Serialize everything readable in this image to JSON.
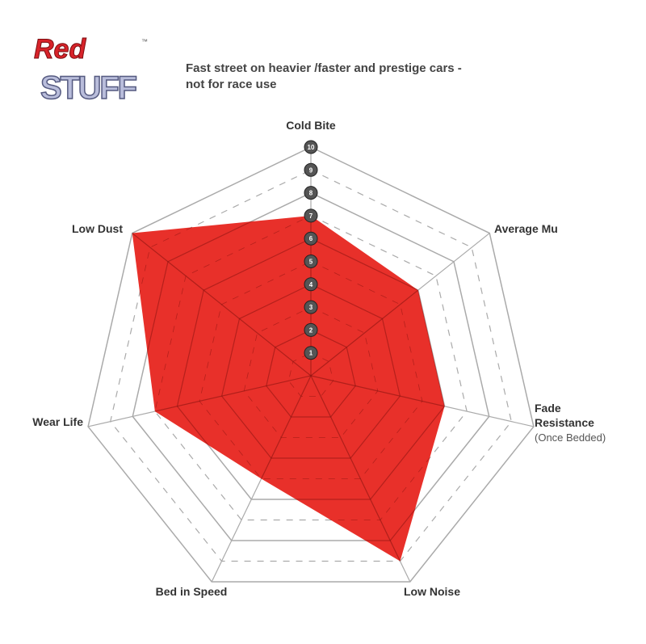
{
  "logo": {
    "line1": "Red",
    "line2": "STUFF",
    "tm": "™"
  },
  "subtitle": {
    "line1": "Fast street on heavier /faster and prestige cars -",
    "line2": "not for race use"
  },
  "chart_data": {
    "type": "radar",
    "title": "",
    "axes": [
      "Cold Bite",
      "Average Mu",
      "Fade Resistance",
      "Low Noise",
      "Bed in Speed",
      "Wear Life",
      "Low Dust"
    ],
    "axis_note": {
      "Fade Resistance": "(Once Bedded)"
    },
    "values": [
      7,
      6,
      6,
      9,
      5,
      7,
      10
    ],
    "range": [
      0,
      10
    ],
    "tick_labels": [
      "1",
      "2",
      "3",
      "4",
      "5",
      "6",
      "7",
      "8",
      "9",
      "10"
    ],
    "grid": true,
    "fill_color": "#e8302a",
    "grid_color": "#aaaaaa"
  }
}
